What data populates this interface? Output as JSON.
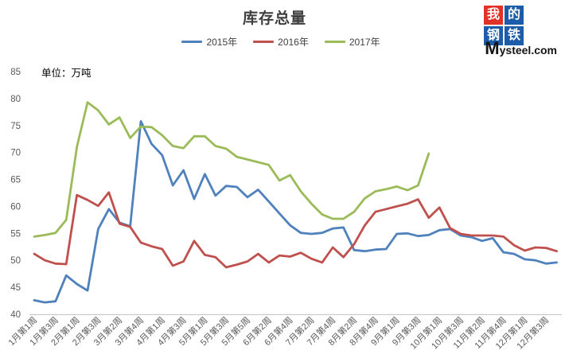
{
  "title": "库存总量",
  "unit_label": "单位：万吨",
  "legend": [
    {
      "label": "2015年",
      "color": "#4F81BD"
    },
    {
      "label": "2016年",
      "color": "#C0504D"
    },
    {
      "label": "2017年",
      "color": "#9BBB59"
    }
  ],
  "logo": {
    "chars": [
      "我",
      "的",
      "钢",
      "铁"
    ],
    "site_m": "M",
    "site_rest": "ysteel.com",
    "red": "#E03228",
    "blue": "#1C5CA8"
  },
  "chart_data": {
    "type": "line",
    "title": "库存总量",
    "ylabel": "万吨",
    "ylim": [
      40,
      85
    ],
    "ytick_step": 5,
    "grid": false,
    "legend_position": "top",
    "x_tick_labels": [
      "1月第1周",
      "1月第3周",
      "2月第1周",
      "2月第3周",
      "3月第2周",
      "3月第4周",
      "4月第1周",
      "4月第3周",
      "5月第1周",
      "5月第3周",
      "5月第5周",
      "6月第2周",
      "6月第4周",
      "7月第2周",
      "7月第4周",
      "8月第2周",
      "8月第4周",
      "9月第1周",
      "9月第3周",
      "10月第1周",
      "10月第3周",
      "11月第2周",
      "11月第4周",
      "12月第1周",
      "12月第3周"
    ],
    "points_per_tick": 2,
    "series": [
      {
        "name": "2015年",
        "color": "#4F81BD",
        "values": [
          42.6,
          42.2,
          42.4,
          47.2,
          45.6,
          44.4,
          55.8,
          59.5,
          57.0,
          56.3,
          75.8,
          71.6,
          69.5,
          63.9,
          66.7,
          61.4,
          66.0,
          62.0,
          63.8,
          63.6,
          61.7,
          63.1,
          60.9,
          58.7,
          56.5,
          55.1,
          54.9,
          55.1,
          55.9,
          56.1,
          51.9,
          51.7,
          52.0,
          52.1,
          54.9,
          55.0,
          54.5,
          54.7,
          55.6,
          55.8,
          54.6,
          54.3,
          53.6,
          54.1,
          51.5,
          51.2,
          50.2,
          50.0,
          49.4,
          49.6
        ]
      },
      {
        "name": "2016年",
        "color": "#C0504D",
        "values": [
          51.2,
          50.0,
          49.4,
          49.3,
          62.1,
          61.2,
          60.1,
          62.6,
          56.8,
          56.2,
          53.3,
          52.6,
          52.1,
          49.0,
          49.8,
          53.6,
          51.0,
          50.6,
          48.7,
          49.2,
          49.8,
          51.2,
          49.6,
          50.9,
          50.7,
          51.4,
          50.3,
          49.6,
          52.4,
          50.6,
          53.0,
          56.5,
          59.0,
          59.5,
          60.0,
          60.5,
          61.3,
          57.9,
          59.8,
          56.0,
          54.9,
          54.6,
          54.6,
          54.6,
          54.4,
          52.8,
          51.8,
          52.4,
          52.3,
          51.7
        ]
      },
      {
        "name": "2017年",
        "color": "#9BBB59",
        "values": [
          54.4,
          54.7,
          55.1,
          57.5,
          71.0,
          79.3,
          77.8,
          75.2,
          76.5,
          72.7,
          74.8,
          74.7,
          73.2,
          71.2,
          70.8,
          73.0,
          73.0,
          71.2,
          70.7,
          69.2,
          68.7,
          68.2,
          67.7,
          64.8,
          65.8,
          62.8,
          60.5,
          58.5,
          57.7,
          57.7,
          59.0,
          61.5,
          62.8,
          63.2,
          63.7,
          63.0,
          63.9,
          69.8
        ]
      }
    ]
  }
}
